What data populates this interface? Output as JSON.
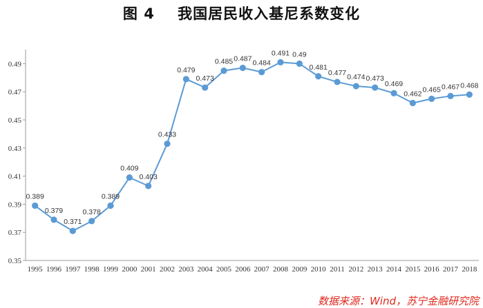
{
  "page": {
    "title": "图 4    我国居民收入基尼系数变化",
    "source": "数据来源：Wind，苏宁金融研究院"
  },
  "chart_data": {
    "type": "line",
    "title": "图 4    我国居民收入基尼系数变化",
    "xlabel": "",
    "ylabel": "",
    "x": [
      "1995",
      "1996",
      "1997",
      "1998",
      "1999",
      "2000",
      "2001",
      "2002",
      "2003",
      "2004",
      "2005",
      "2006",
      "2007",
      "2008",
      "2009",
      "2010",
      "2011",
      "2012",
      "2013",
      "2014",
      "2015",
      "2016",
      "2017",
      "2018"
    ],
    "values": [
      0.389,
      0.379,
      0.371,
      0.378,
      0.389,
      0.409,
      0.403,
      0.433,
      0.479,
      0.473,
      0.485,
      0.487,
      0.484,
      0.491,
      0.49,
      0.481,
      0.477,
      0.474,
      0.473,
      0.469,
      0.462,
      0.465,
      0.467,
      0.468
    ],
    "data_labels": [
      "0.389",
      "0.379",
      "0.371",
      "0.378",
      "0.389",
      "0.409",
      "0.403",
      "0.433",
      "0.479",
      "0.473",
      "0.485",
      "0.487",
      "0.484",
      "0.491",
      "0.49",
      "0.481",
      "0.477",
      "0.474",
      "0.473",
      "0.469",
      "0.462",
      "0.465",
      "0.467",
      "0.468"
    ],
    "y_ticks": [
      "0.35",
      "0.37",
      "0.39",
      "0.41",
      "0.43",
      "0.45",
      "0.47",
      "0.49"
    ],
    "ylim": [
      0.35,
      0.5
    ],
    "grid": false,
    "legend": "none",
    "line_color": "#5b9bd5",
    "marker_color": "#5b9bd5"
  }
}
